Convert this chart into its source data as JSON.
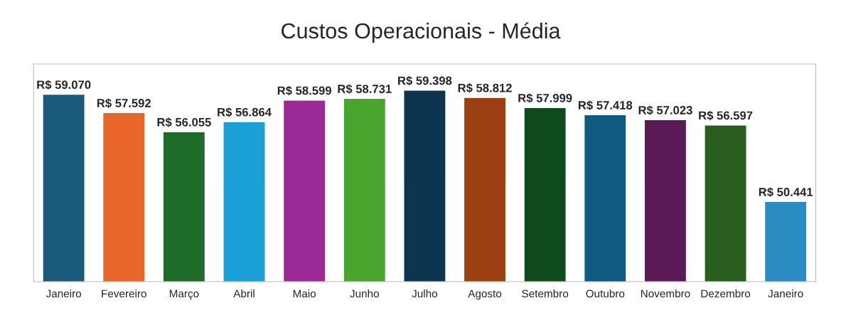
{
  "chart_data": {
    "type": "bar",
    "title": "Custos Operacionais - Média",
    "categories": [
      "Janeiro",
      "Fevereiro",
      "Março",
      "Abril",
      "Maio",
      "Junho",
      "Julho",
      "Agosto",
      "Setembro",
      "Outubro",
      "Novembro",
      "Dezembro",
      "Janeiro"
    ],
    "values": [
      59070,
      57592,
      56055,
      56864,
      58599,
      58731,
      59398,
      58812,
      57999,
      57418,
      57023,
      56597,
      50441
    ],
    "value_labels": [
      "R$ 59.070",
      "R$ 57.592",
      "R$ 56.055",
      "R$ 56.864",
      "R$ 58.599",
      "R$ 58.731",
      "R$ 59.398",
      "R$ 58.812",
      "R$ 57.999",
      "R$ 57.418",
      "R$ 57.023",
      "R$ 56.597",
      "R$ 50.441"
    ],
    "colors": [
      "#1a5a7a",
      "#e8662a",
      "#1e6b2a",
      "#1a9fd6",
      "#9b2a96",
      "#4aa52e",
      "#0e3550",
      "#9c3f12",
      "#0f4a1a",
      "#0f5a80",
      "#5a1a55",
      "#2a5e1e",
      "#2a8cc0"
    ],
    "ylim": [
      44000,
      61500
    ],
    "grid": false,
    "legend": false
  }
}
